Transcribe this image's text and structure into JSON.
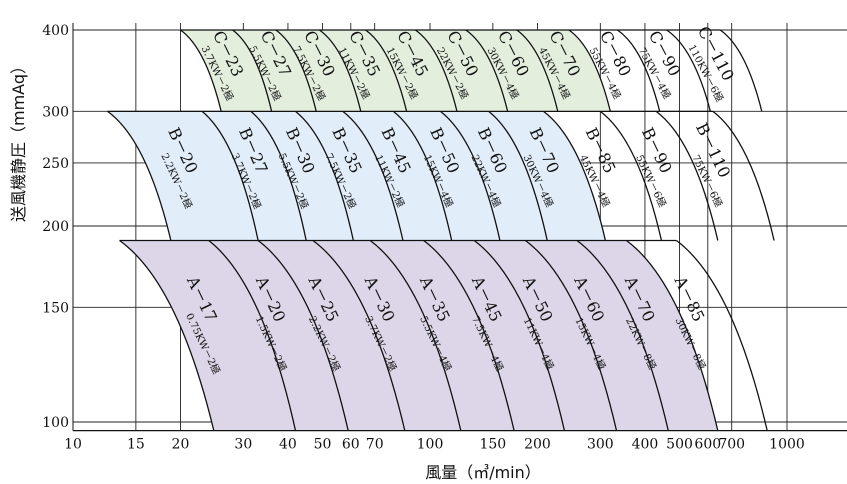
{
  "chart_data": {
    "type": "area",
    "title": "",
    "xlabel": "風量（㎥/min）",
    "ylabel": "送風機静圧（mmAq）",
    "x_scale": "log",
    "y_scale": "log",
    "xlim": [
      10,
      1100
    ],
    "ylim": [
      97,
      410
    ],
    "x_ticks": [
      10,
      15,
      20,
      30,
      40,
      50,
      60,
      70,
      100,
      150,
      200,
      300,
      400,
      500,
      600,
      700,
      1000
    ],
    "x_tick_labels": [
      "10",
      "15",
      "20",
      "30",
      "40",
      "50",
      "60",
      "70",
      "100",
      "150",
      "200",
      "300",
      "400",
      "500",
      "600",
      "700",
      "1000"
    ],
    "y_ticks": [
      100,
      150,
      200,
      250,
      300,
      400
    ],
    "y_tick_labels": [
      "100",
      "150",
      "200",
      "250",
      "300",
      "400"
    ],
    "grid": true,
    "colors": {
      "C": "#e3eedd",
      "B": "#e1edf9",
      "A": "#dcd6e8",
      "line": "#111111",
      "grid": "#222222"
    },
    "bands": [
      {
        "group": "C",
        "p_top": 400,
        "p_bottom": 300,
        "x_top_start": 20,
        "x_bottom_start": 26,
        "shaded_until": "C-70",
        "models": [
          {
            "model": "C－23",
            "motor": "3.7KW－2極",
            "x_top": 20,
            "x_bottom": 26
          },
          {
            "model": "C－27",
            "motor": "5.5KW－2極",
            "x_top": 28,
            "x_bottom": 36
          },
          {
            "model": "C－30",
            "motor": "7.5KW－2極",
            "x_top": 37,
            "x_bottom": 48
          },
          {
            "model": "C－35",
            "motor": "11KW－2極",
            "x_top": 49,
            "x_bottom": 64
          },
          {
            "model": "C－45",
            "motor": "15KW－2極",
            "x_top": 66,
            "x_bottom": 86
          },
          {
            "model": "C－50",
            "motor": "22KW－2極",
            "x_top": 91,
            "x_bottom": 119
          },
          {
            "model": "C－60",
            "motor": "30KW－4極",
            "x_top": 126,
            "x_bottom": 165
          },
          {
            "model": "C－70",
            "motor": "45KW－4極",
            "x_top": 175,
            "x_bottom": 228
          },
          {
            "model": "C－80",
            "motor": "55KW－4極",
            "x_top": 245,
            "x_bottom": 320
          },
          {
            "model": "C－90",
            "motor": "75KW－4極",
            "x_top": 335,
            "x_bottom": 440
          },
          {
            "model": "C－110",
            "motor": "110KW－6極",
            "x_top": 460,
            "x_bottom": 610
          },
          {
            "model": "",
            "motor": "",
            "x_top": 650,
            "x_bottom": 850
          }
        ]
      },
      {
        "group": "B",
        "p_top": 300,
        "p_bottom": 190,
        "x_top_start": 12.5,
        "x_bottom_start": 18.8,
        "shaded_until": "B-70",
        "models": [
          {
            "model": "B－20",
            "motor": "2.2KW－2極",
            "x_top": 12.5,
            "x_bottom": 18.8
          },
          {
            "model": "B－27",
            "motor": "3.7KW－2極",
            "x_top": 23,
            "x_bottom": 33
          },
          {
            "model": "B－30",
            "motor": "5.5KW－2極",
            "x_top": 31.5,
            "x_bottom": 45
          },
          {
            "model": "B－35",
            "motor": "7.5KW－2極",
            "x_top": 42,
            "x_bottom": 61
          },
          {
            "model": "B－45",
            "motor": "11KW－2極",
            "x_top": 57,
            "x_bottom": 84
          },
          {
            "model": "B－50",
            "motor": "15KW－4極",
            "x_top": 79,
            "x_bottom": 115
          },
          {
            "model": "B－60",
            "motor": "22KW－4極",
            "x_top": 107,
            "x_bottom": 157
          },
          {
            "model": "B－70",
            "motor": "30KW－4極",
            "x_top": 146,
            "x_bottom": 213
          },
          {
            "model": "B－85",
            "motor": "45KW－4極",
            "x_top": 208,
            "x_bottom": 310
          },
          {
            "model": "B－90",
            "motor": "55KW－6極",
            "x_top": 300,
            "x_bottom": 445
          },
          {
            "model": "B－110",
            "motor": "75KW－6極",
            "x_top": 430,
            "x_bottom": 640
          },
          {
            "model": "",
            "motor": "",
            "x_top": 620,
            "x_bottom": 920
          }
        ]
      },
      {
        "group": "A",
        "p_top": 190,
        "p_bottom": 97,
        "x_top_start": 13.5,
        "x_bottom_start": 24.8,
        "shaded_until": "A-70",
        "models": [
          {
            "model": "A－17",
            "motor": "0.75KW－2極",
            "x_top": 13.5,
            "x_bottom": 24.8
          },
          {
            "model": "A－20",
            "motor": "1.5KW－2極",
            "x_top": 24,
            "x_bottom": 42
          },
          {
            "model": "A－25",
            "motor": "2.2KW－2極",
            "x_top": 33,
            "x_bottom": 59
          },
          {
            "model": "A－30",
            "motor": "3.7KW－2極",
            "x_top": 47,
            "x_bottom": 85
          },
          {
            "model": "A－35",
            "motor": "5.5KW－4極",
            "x_top": 68,
            "x_bottom": 122
          },
          {
            "model": "A－45",
            "motor": "7.5KW－4極",
            "x_top": 96,
            "x_bottom": 172
          },
          {
            "model": "A－50",
            "motor": "11KW－4極",
            "x_top": 133,
            "x_bottom": 238
          },
          {
            "model": "A－60",
            "motor": "15KW－4極",
            "x_top": 185,
            "x_bottom": 333
          },
          {
            "model": "A－70",
            "motor": "22KW－8極",
            "x_top": 258,
            "x_bottom": 465
          },
          {
            "model": "A－85",
            "motor": "30KW－8極",
            "x_top": 355,
            "x_bottom": 640
          },
          {
            "model": "",
            "motor": "",
            "x_top": 490,
            "x_bottom": 880
          }
        ]
      }
    ]
  }
}
